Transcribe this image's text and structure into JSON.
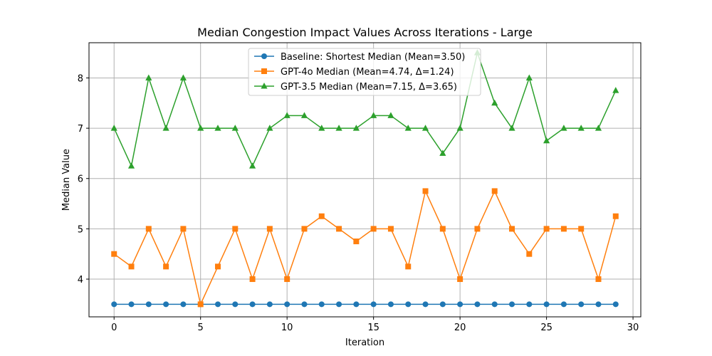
{
  "chart_data": {
    "type": "line",
    "title": "Median Congestion Impact Values Across Iterations - Large",
    "xlabel": "Iteration",
    "ylabel": "Median Value",
    "xlim": [
      -1.45,
      30.45
    ],
    "ylim": [
      3.25,
      8.7
    ],
    "xticks": [
      0,
      5,
      10,
      15,
      20,
      25,
      30
    ],
    "yticks": [
      4,
      5,
      6,
      7,
      8
    ],
    "grid": true,
    "legend_position": "top-center",
    "x": [
      0,
      1,
      2,
      3,
      4,
      5,
      6,
      7,
      8,
      9,
      10,
      11,
      12,
      13,
      14,
      15,
      16,
      17,
      18,
      19,
      20,
      21,
      22,
      23,
      24,
      25,
      26,
      27,
      28,
      29
    ],
    "series": [
      {
        "name": "Baseline: Shortest Median (Mean=3.50)",
        "color": "#1f77b4",
        "marker": "circle",
        "values": [
          3.5,
          3.5,
          3.5,
          3.5,
          3.5,
          3.5,
          3.5,
          3.5,
          3.5,
          3.5,
          3.5,
          3.5,
          3.5,
          3.5,
          3.5,
          3.5,
          3.5,
          3.5,
          3.5,
          3.5,
          3.5,
          3.5,
          3.5,
          3.5,
          3.5,
          3.5,
          3.5,
          3.5,
          3.5,
          3.5
        ]
      },
      {
        "name": "GPT-4o Median (Mean=4.74, Δ=1.24)",
        "color": "#ff7f0e",
        "marker": "square",
        "values": [
          4.5,
          4.25,
          5,
          4.25,
          5,
          3.5,
          4.25,
          5,
          4,
          5,
          4,
          5,
          5.25,
          5,
          4.75,
          5,
          5,
          4.25,
          5.75,
          5,
          4,
          5,
          5.75,
          5,
          4.5,
          5,
          5,
          5,
          4,
          5.25
        ]
      },
      {
        "name": "GPT-3.5 Median (Mean=7.15, Δ=3.65)",
        "color": "#2ca02c",
        "marker": "triangle",
        "values": [
          7,
          6.25,
          8,
          7,
          8,
          7,
          7,
          7,
          6.25,
          7,
          7.25,
          7.25,
          7,
          7,
          7,
          7.25,
          7.25,
          7,
          7,
          6.5,
          7,
          8.5,
          7.5,
          7,
          8,
          6.75,
          7,
          7,
          7,
          7.75
        ]
      }
    ]
  }
}
